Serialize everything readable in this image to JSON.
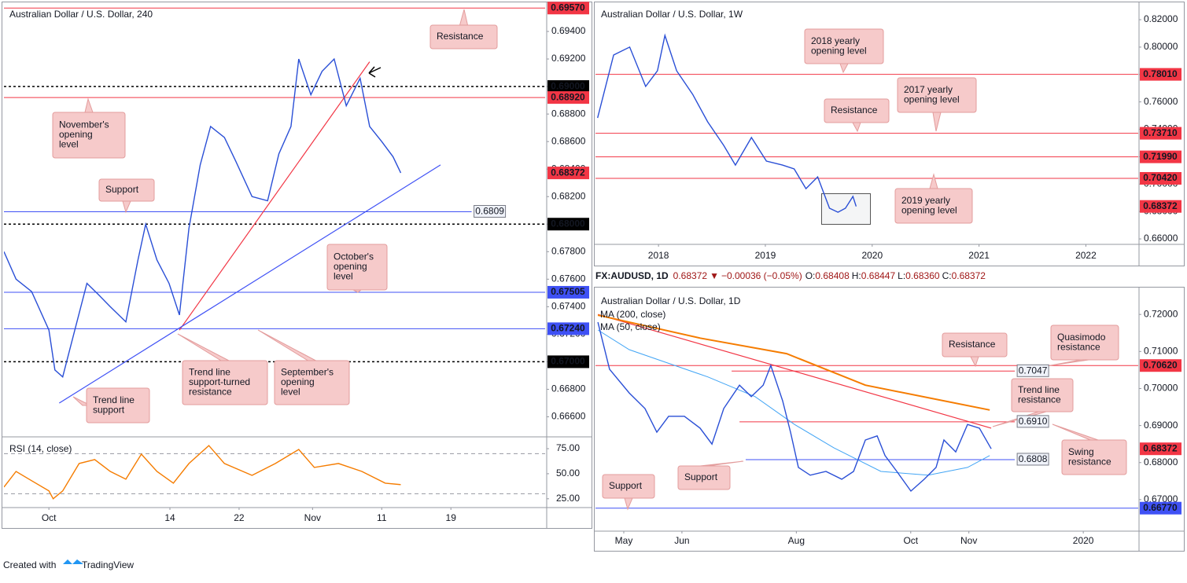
{
  "chart_data": [
    {
      "type": "line",
      "title": "Australian Dollar / U.S. Dollar, 240",
      "color": "#2a4fd6",
      "x": [
        -5.2,
        -3.8,
        -2.0,
        0,
        0.7,
        1.6,
        3.0,
        4.4,
        5.7,
        7.1,
        8.9,
        10.3,
        11.2,
        12.5,
        13.9,
        15.1,
        16.2,
        17.5,
        18.7,
        20.3,
        21.6,
        23.5,
        25.3,
        26.6,
        28.0,
        28.9,
        30.3,
        31.6,
        33.0,
        34.4,
        36.0,
        37.1,
        38.5,
        39.8,
        40.7
      ],
      "values": [
        0.678,
        0.676,
        0.6751,
        0.6723,
        0.6694,
        0.6689,
        0.6723,
        0.6757,
        0.6749,
        0.674,
        0.6729,
        0.6774,
        0.68,
        0.6774,
        0.6757,
        0.6734,
        0.6797,
        0.6843,
        0.6871,
        0.6863,
        0.6846,
        0.682,
        0.6817,
        0.6851,
        0.6871,
        0.692,
        0.6894,
        0.6911,
        0.692,
        0.6886,
        0.6906,
        0.6871,
        0.686,
        0.6849,
        0.68372
      ],
      "xlim": [
        -5.2,
        57.4
      ],
      "xticks": [
        {
          "value": 0,
          "label": "Oct"
        },
        14,
        22,
        {
          "value": 30.5,
          "label": "Nov"
        },
        {
          "value": 38.5,
          "label": "11"
        },
        {
          "value": 46.5,
          "label": "19"
        }
      ],
      "ylim": [
        0.6646,
        0.696
      ],
      "yticks": [
        {
          "value": 0.666,
          "label": "0.66600"
        },
        {
          "value": 0.668,
          "label": "0.66800"
        },
        {
          "value": 0.67,
          "label": "0.67000"
        },
        {
          "value": 0.672,
          "label": "0.67200"
        },
        {
          "value": 0.674,
          "label": "0.67400"
        },
        {
          "value": 0.676,
          "label": "0.67600"
        },
        {
          "value": 0.678,
          "label": "0.67800"
        },
        {
          "value": 0.68,
          "label": "0.68000"
        },
        {
          "value": 0.682,
          "label": "0.68200"
        },
        {
          "value": 0.684,
          "label": "0.68400"
        },
        {
          "value": 0.686,
          "label": "0.68600"
        },
        {
          "value": 0.688,
          "label": "0.68800"
        },
        {
          "value": 0.69,
          "label": "0.69000"
        },
        {
          "value": 0.692,
          "label": "0.69200"
        },
        {
          "value": 0.694,
          "label": "0.69400"
        }
      ],
      "levels": [
        {
          "value": 0.6957,
          "label": "0.69570",
          "color": "#f23645",
          "style": "solid",
          "tag": "filled"
        },
        {
          "value": 0.69,
          "label": "0.69000",
          "color": "#000000",
          "style": "dashed",
          "tag": "filled"
        },
        {
          "value": 0.6892,
          "label": "0.68920",
          "color": "#f23645",
          "style": "solid",
          "tag": "filled"
        },
        {
          "value": 0.6809,
          "label": "0.6809",
          "color": "#3f51f5",
          "style": "solid",
          "tag": "box",
          "to": 48.9
        },
        {
          "value": 0.68,
          "label": "0.68000",
          "color": "#000000",
          "style": "dashed",
          "tag": "filled"
        },
        {
          "value": 0.67505,
          "label": "0.67505",
          "color": "#3f51f5",
          "style": "solid",
          "tag": "filled"
        },
        {
          "value": 0.6724,
          "label": "0.67240",
          "color": "#3f51f5",
          "style": "solid",
          "tag": "filled"
        },
        {
          "value": 0.67,
          "label": "0.67000",
          "color": "#000000",
          "style": "dashed",
          "tag": "filled"
        }
      ],
      "trendlines": [
        {
          "color": "#f23645",
          "x": [
            15.1,
            37.1
          ],
          "values": [
            0.6723,
            0.6918
          ]
        },
        {
          "color": "#3f51f5",
          "x": [
            1.2,
            45.3
          ],
          "values": [
            0.667,
            0.6843
          ]
        }
      ],
      "last": {
        "value": 0.68372,
        "label": "0.68372",
        "color": "#f23645"
      },
      "annotations": [
        {
          "lines": [
            "Resistance"
          ]
        },
        {
          "lines": [
            "November's",
            "opening",
            "level"
          ]
        },
        {
          "lines": [
            "Support"
          ]
        },
        {
          "lines": [
            "October's",
            "opening",
            "level"
          ]
        },
        {
          "lines": [
            "Trend line",
            "support-turned",
            "resistance"
          ]
        },
        {
          "lines": [
            "September's",
            "opening",
            "level"
          ]
        },
        {
          "lines": [
            "Trend line",
            "support"
          ]
        }
      ],
      "indicator": {
        "name": "RSI (14, close)",
        "color": "#f57c00",
        "x": [
          -5.2,
          -3.8,
          -2.0,
          0,
          0.5,
          1.6,
          3.5,
          5.3,
          7.1,
          8.9,
          10.7,
          12.5,
          14.4,
          16.2,
          18.5,
          20.3,
          23.5,
          26.2,
          28.9,
          30.7,
          33.5,
          36.2,
          38.9,
          40.7
        ],
        "values": [
          36.7,
          52.3,
          43,
          32.8,
          25,
          32.8,
          60.2,
          64.1,
          52.3,
          44.5,
          69.5,
          52.3,
          40.6,
          60.2,
          78.1,
          60.2,
          48.4,
          60.2,
          74.2,
          56.3,
          60.2,
          52.3,
          40.6,
          39.1
        ],
        "ylim": [
          17,
          86
        ],
        "yticks": [
          {
            "value": 25,
            "label": "25.00"
          },
          {
            "value": 50,
            "label": "50.00"
          },
          {
            "value": 75,
            "label": "75.00"
          }
        ],
        "bands": [
          70,
          30
        ]
      }
    },
    {
      "type": "line",
      "title": "Australian Dollar / U.S. Dollar, 1W",
      "color": "#2a4fd6",
      "x": [
        2017.43,
        2017.58,
        2017.73,
        2017.88,
        2017.99,
        2018.06,
        2018.17,
        2018.32,
        2018.46,
        2018.61,
        2018.72,
        2018.87,
        2019.01,
        2019.16,
        2019.27,
        2019.38,
        2019.49,
        2019.6,
        2019.68,
        2019.75,
        2019.82,
        2019.85
      ],
      "values": [
        0.7483,
        0.7942,
        0.8,
        0.7713,
        0.7827,
        0.8085,
        0.7827,
        0.7655,
        0.7455,
        0.7283,
        0.7139,
        0.734,
        0.7168,
        0.7139,
        0.7111,
        0.6967,
        0.7053,
        0.6824,
        0.6795,
        0.6824,
        0.691,
        0.68372
      ],
      "xlim": [
        2017.41,
        2022.49
      ],
      "xticks": [
        2018,
        2019,
        2020,
        2021,
        2022
      ],
      "ylim": [
        0.6566,
        0.8315
      ],
      "yticks": [
        {
          "value": 0.66,
          "label": "0.66000"
        },
        {
          "value": 0.68,
          "label": "0.68000"
        },
        {
          "value": 0.7,
          "label": "0.70000"
        },
        {
          "value": 0.72,
          "label": "0.72000"
        },
        {
          "value": 0.74,
          "label": "0.74000"
        },
        {
          "value": 0.76,
          "label": "0.76000"
        },
        {
          "value": 0.78,
          "label": "0.78000"
        },
        {
          "value": 0.8,
          "label": "0.80000"
        },
        {
          "value": 0.82,
          "label": "0.82000"
        }
      ],
      "levels": [
        {
          "value": 0.7801,
          "label": "0.78010",
          "color": "#f23645",
          "style": "solid",
          "tag": "filled"
        },
        {
          "value": 0.7371,
          "label": "0.73710",
          "color": "#f23645",
          "style": "solid",
          "tag": "filled"
        },
        {
          "value": 0.7199,
          "label": "0.71990",
          "color": "#f23645",
          "style": "solid",
          "tag": "filled"
        },
        {
          "value": 0.7042,
          "label": "0.70420",
          "color": "#f23645",
          "style": "solid",
          "tag": "filled"
        }
      ],
      "last": {
        "value": 0.68372,
        "label": "0.68372",
        "color": "#f23645"
      },
      "annotations": [
        {
          "lines": [
            "2018 yearly",
            "opening level"
          ]
        },
        {
          "lines": [
            "2017 yearly",
            "opening level"
          ]
        },
        {
          "lines": [
            "Resistance"
          ]
        },
        {
          "lines": [
            "2019 yearly",
            "opening level"
          ]
        }
      ]
    },
    {
      "type": "line",
      "title": "Australian Dollar / U.S. Dollar, 1D",
      "color": "#2a4fd6",
      "legend": {
        "symbol": "FX:AUDUSD, 1D",
        "last": "0.68372",
        "change": "−0.00036 (−0.05%)",
        "ohlc": [
          {
            "label": "O:",
            "value": "0.68408"
          },
          {
            "label": "H:",
            "value": "0.68447"
          },
          {
            "label": "L:",
            "value": "0.68360"
          },
          {
            "label": "C:",
            "value": "0.68372"
          }
        ]
      },
      "x": [
        106.2,
        112.4,
        122.9,
        131.3,
        137.6,
        143.9,
        152.3,
        160.7,
        167.0,
        173.3,
        181.7,
        188.0,
        194.3,
        198.4,
        204.7,
        208.9,
        213.1,
        219.4,
        227.8,
        236.2,
        242.5,
        248.8,
        255.1,
        259.3,
        265.6,
        273.1,
        280.2,
        286.5,
        290.7,
        297.0,
        303.3,
        309.6,
        315.9
      ],
      "values": [
        0.7179,
        0.7052,
        0.6988,
        0.6946,
        0.6882,
        0.6925,
        0.6925,
        0.6893,
        0.685,
        0.6946,
        0.7009,
        0.6978,
        0.7009,
        0.7062,
        0.6967,
        0.6882,
        0.6787,
        0.6766,
        0.6776,
        0.6755,
        0.6776,
        0.6861,
        0.6872,
        0.6819,
        0.6776,
        0.6723,
        0.6755,
        0.6787,
        0.6861,
        0.6829,
        0.6903,
        0.6893,
        0.68372
      ],
      "xlim": [
        104.9,
        394.3
      ],
      "xticks": [
        {
          "value": 120,
          "label": "May"
        },
        {
          "value": 151,
          "label": "Jun"
        },
        {
          "value": 212,
          "label": "Aug"
        },
        {
          "value": 273,
          "label": "Oct"
        },
        {
          "value": 304,
          "label": "Nov"
        },
        {
          "value": 365,
          "label": "2020"
        }
      ],
      "ylim": [
        0.6617,
        0.7264
      ],
      "yticks": [
        {
          "value": 0.67,
          "label": "0.67000"
        },
        {
          "value": 0.68,
          "label": "0.68000"
        },
        {
          "value": 0.69,
          "label": "0.69000"
        },
        {
          "value": 0.7,
          "label": "0.70000"
        },
        {
          "value": 0.71,
          "label": "0.71000"
        },
        {
          "value": 0.72,
          "label": "0.72000"
        }
      ],
      "indicators": [
        {
          "name": "MA (200, close)",
          "color": "#f57c00",
          "x": [
            106.2,
            160.7,
            206.8,
            248.8,
            315.1
          ],
          "values": [
            0.7198,
            0.7136,
            0.7094,
            0.7009,
            0.6942
          ]
        },
        {
          "name": "MA (50, close)",
          "color": "#42a5f5",
          "x": [
            106.2,
            122.9,
            164.9,
            190.0,
            211.0,
            232.0,
            257.1,
            282.3,
            303.3,
            315.1
          ],
          "values": [
            0.7158,
            0.7105,
            0.7031,
            0.6978,
            0.6903,
            0.684,
            0.6776,
            0.6766,
            0.6787,
            0.6819
          ]
        }
      ],
      "levels": [
        {
          "value": 0.7062,
          "label": "0.70620",
          "color": "#f23645",
          "style": "solid",
          "tag": "filled"
        },
        {
          "value": 0.7047,
          "label": "0.7047",
          "color": "#f23645",
          "style": "solid",
          "tag": "box",
          "from": 177.5,
          "to": 328.5
        },
        {
          "value": 0.691,
          "label": "0.6910",
          "color": "#f23645",
          "style": "solid",
          "tag": "box",
          "from": 181.7,
          "to": 328.5
        },
        {
          "value": 0.6808,
          "label": "0.6808",
          "color": "#3f51f5",
          "style": "solid",
          "tag": "box",
          "from": 185.0,
          "to": 328.5
        },
        {
          "value": 0.6677,
          "label": "0.66770",
          "color": "#3f51f5",
          "style": "solid",
          "tag": "filled"
        }
      ],
      "trendlines": [
        {
          "color": "#f23645",
          "x": [
            106.2,
            315.9
          ],
          "values": [
            0.72,
            0.6893
          ]
        }
      ],
      "last": {
        "value": 0.68372,
        "label": "0.68372",
        "color": "#f23645"
      },
      "annotations": [
        {
          "lines": [
            "Resistance"
          ]
        },
        {
          "lines": [
            "Quasimodo",
            "resistance"
          ]
        },
        {
          "lines": [
            "Trend line",
            "resistance"
          ]
        },
        {
          "lines": [
            "Swing",
            "resistance"
          ]
        },
        {
          "lines": [
            "Support"
          ]
        },
        {
          "lines": [
            "Support"
          ]
        }
      ]
    }
  ],
  "footer": {
    "text": "Created with",
    "brand": "TradingView"
  }
}
